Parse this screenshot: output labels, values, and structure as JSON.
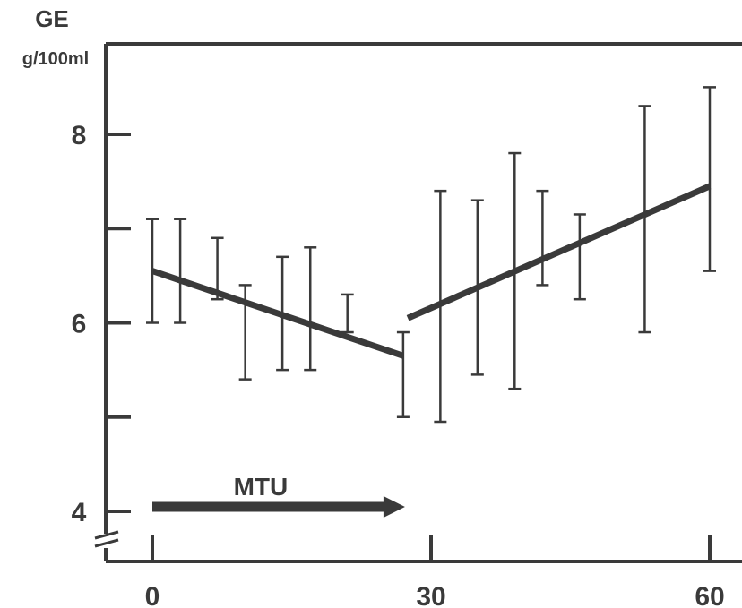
{
  "chart_data": {
    "type": "line",
    "ylabel": "GE",
    "yunit": "g/100ml",
    "xlabel": "",
    "xticks": [
      0,
      30,
      60
    ],
    "yticks": [
      4,
      6,
      8
    ],
    "xlim": [
      0,
      60
    ],
    "ylim": [
      4,
      8
    ],
    "axis_break_on_y": true,
    "grid": false,
    "annotation": {
      "text": "MTU",
      "from_x": 0,
      "to_x": 27,
      "y": 4.05
    },
    "color": "#3a3a3a",
    "error_bars": [
      {
        "x": 0,
        "low": 6.0,
        "high": 7.1
      },
      {
        "x": 3,
        "low": 6.0,
        "high": 7.1
      },
      {
        "x": 7,
        "low": 6.25,
        "high": 6.9
      },
      {
        "x": 10,
        "low": 5.4,
        "high": 6.4
      },
      {
        "x": 14,
        "low": 5.5,
        "high": 6.7
      },
      {
        "x": 17,
        "low": 5.5,
        "high": 6.8
      },
      {
        "x": 21,
        "low": 5.9,
        "high": 6.3
      },
      {
        "x": 27,
        "low": 5.0,
        "high": 5.9
      },
      {
        "x": 31,
        "low": 4.95,
        "high": 7.4
      },
      {
        "x": 35,
        "low": 5.45,
        "high": 7.3
      },
      {
        "x": 39,
        "low": 5.3,
        "high": 7.8
      },
      {
        "x": 42,
        "low": 6.4,
        "high": 7.4
      },
      {
        "x": 46,
        "low": 6.25,
        "high": 7.15
      },
      {
        "x": 53,
        "low": 5.9,
        "high": 8.3
      },
      {
        "x": 60,
        "low": 6.55,
        "high": 8.5
      }
    ],
    "series": [
      {
        "values": [
          [
            0,
            6.55
          ],
          [
            27,
            5.65
          ]
        ]
      },
      {
        "values": [
          [
            27.5,
            6.05
          ],
          [
            60,
            7.45
          ]
        ]
      }
    ]
  }
}
